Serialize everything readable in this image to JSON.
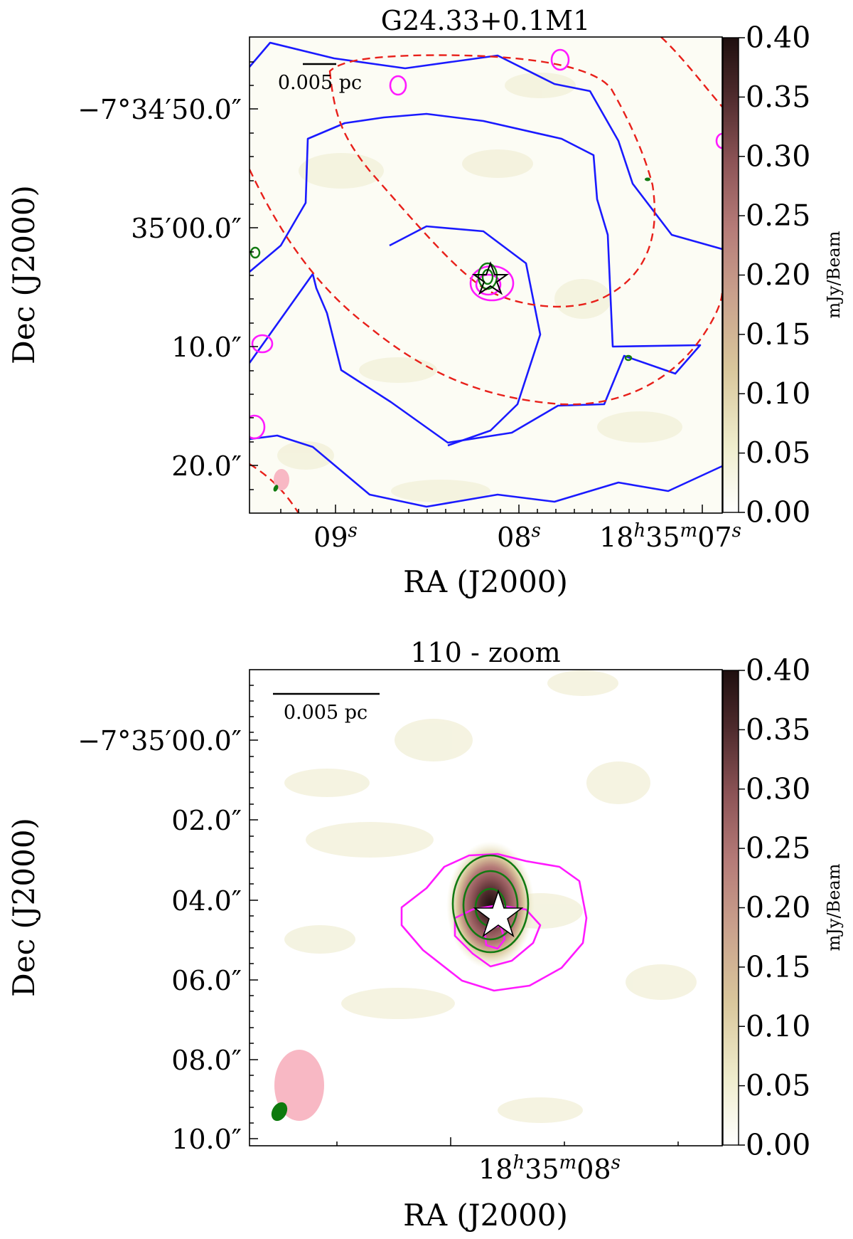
{
  "figure": {
    "background": "#ffffff",
    "contour_colors": {
      "blue": "#1a1aff",
      "red_dashed": "#e8201a",
      "magenta": "#ff1aff",
      "green": "#127a12",
      "beam_large": "#f8b8c4",
      "beam_small": "#0e7a0e"
    },
    "colormap": [
      "#ffffff",
      "#efedcd",
      "#d9c79c",
      "#c9a08c",
      "#b57b78",
      "#8c5356",
      "#4d2a2c",
      "#1e0f0f"
    ]
  },
  "chart_data": [
    {
      "type": "heatmap",
      "title": "G24.33+0.1M1",
      "xlabel": "RA (J2000)",
      "ylabel": "Dec (J2000)",
      "x_ticks": [
        {
          "label": "09",
          "unit": "s"
        },
        {
          "label": "08",
          "unit": "s"
        },
        {
          "label": "18h35m07s",
          "parts": [
            {
              "t": "18"
            },
            {
              "t": "h",
              "sup": true
            },
            {
              "t": "35"
            },
            {
              "t": "m",
              "sup": true
            },
            {
              "t": "07"
            },
            {
              "t": "s",
              "sup": true
            }
          ]
        }
      ],
      "y_ticks": [
        "−7°34′50.0″",
        "35′00.0″",
        "10.0″",
        "20.0″"
      ],
      "colorbar": {
        "label": "mJy/Beam",
        "range": [
          0.0,
          0.4
        ],
        "ticks": [
          "0.40",
          "0.35",
          "0.30",
          "0.25",
          "0.20",
          "0.15",
          "0.10",
          "0.05",
          "0.00"
        ]
      },
      "scale_bar": "0.005 pc",
      "contours": [
        "blue",
        "red-dashed",
        "magenta",
        "green"
      ],
      "markers": [
        "star"
      ]
    },
    {
      "type": "heatmap",
      "title": "110 - zoom",
      "xlabel": "RA (J2000)",
      "ylabel": "Dec (J2000)",
      "x_ticks": [
        {
          "label": "18h35m08s",
          "parts": [
            {
              "t": "18"
            },
            {
              "t": "h",
              "sup": true
            },
            {
              "t": "35"
            },
            {
              "t": "m",
              "sup": true
            },
            {
              "t": "08"
            },
            {
              "t": "s",
              "sup": true
            }
          ]
        }
      ],
      "y_ticks": [
        "−7°35′00.0″",
        "02.0″",
        "04.0″",
        "06.0″",
        "08.0″",
        "10.0″"
      ],
      "colorbar": {
        "label": "mJy/Beam",
        "range": [
          0.0,
          0.4
        ],
        "ticks": [
          "0.40",
          "0.35",
          "0.30",
          "0.25",
          "0.20",
          "0.15",
          "0.10",
          "0.05",
          "0.00"
        ]
      },
      "scale_bar": "0.005 pc",
      "contours": [
        "magenta",
        "green"
      ],
      "markers": [
        "star"
      ],
      "peak_value": 0.4
    }
  ]
}
